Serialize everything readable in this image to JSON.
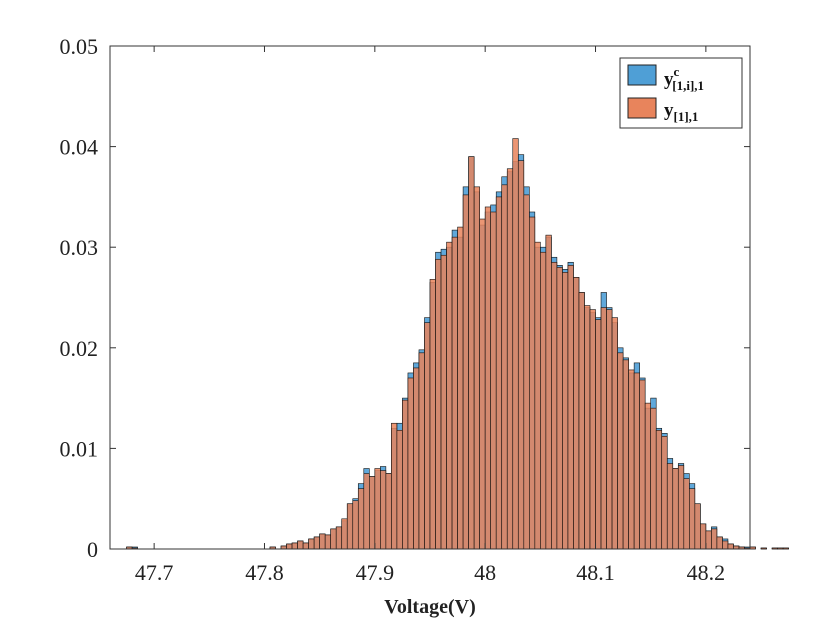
{
  "chart_data": {
    "type": "bar",
    "subtype": "overlaid-histogram",
    "title": "",
    "xlabel": "Voltage(V)",
    "ylabel": "",
    "xlim": [
      47.66,
      48.24
    ],
    "ylim": [
      0,
      0.05
    ],
    "x_ticks": [
      47.7,
      47.8,
      47.9,
      48,
      48.1,
      48.2
    ],
    "x_tick_labels": [
      "47.7",
      "47.8",
      "47.9",
      "48",
      "48.1",
      "48.2"
    ],
    "y_ticks": [
      0,
      0.01,
      0.02,
      0.03,
      0.04,
      0.05
    ],
    "y_tick_labels": [
      "0",
      "0.01",
      "0.02",
      "0.03",
      "0.04",
      "0.05"
    ],
    "grid": false,
    "legend_position": "top-right",
    "bin_width": 0.005,
    "bin_start": 47.675,
    "series": [
      {
        "name": "y^c_[1,i],1",
        "legend_main": "y",
        "legend_sup": "c",
        "legend_sub": "[1,i],1",
        "color": "#4f9fd6",
        "values": [
          0.0002,
          0.0002,
          0,
          0,
          0,
          0,
          0,
          0,
          0,
          0,
          0,
          0,
          0,
          0,
          0,
          0,
          0,
          0,
          0,
          0,
          0,
          0,
          0,
          0,
          0,
          0,
          0.0002,
          0,
          0.0003,
          0.0005,
          0.0006,
          0.0008,
          0.0006,
          0.001,
          0.0012,
          0.0015,
          0.0014,
          0.002,
          0.0022,
          0.0028,
          0.0045,
          0.005,
          0.0065,
          0.008,
          0.0072,
          0.0078,
          0.0082,
          0.0075,
          0.012,
          0.0125,
          0.015,
          0.0175,
          0.0185,
          0.0198,
          0.023,
          0.0265,
          0.0295,
          0.0298,
          0.03,
          0.0317,
          0.031,
          0.036,
          0.039,
          0.0355,
          0.0322,
          0.0335,
          0.0342,
          0.0355,
          0.037,
          0.0375,
          0.0385,
          0.0392,
          0.036,
          0.0335,
          0.03,
          0.03,
          0.031,
          0.029,
          0.0282,
          0.0278,
          0.0285,
          0.027,
          0.0255,
          0.024,
          0.0235,
          0.023,
          0.0255,
          0.024,
          0.0225,
          0.02,
          0.019,
          0.0175,
          0.0185,
          0.017,
          0.014,
          0.015,
          0.012,
          0.0115,
          0.009,
          0.008,
          0.0085,
          0.0075,
          0.0065,
          0.0045,
          0.0025,
          0.0018,
          0.0022,
          0.0012,
          0.001,
          0.0005,
          0.0003,
          0.0002,
          0.0002,
          0.0002,
          0,
          0.0001,
          0,
          0.0001,
          0.0001,
          0.0001
        ]
      },
      {
        "name": "y_[1],1",
        "legend_main": "y",
        "legend_sup": "",
        "legend_sub": "[1],1",
        "color": "#e8845c",
        "values": [
          0.0002,
          0.0001,
          0,
          0,
          0,
          0,
          0,
          0,
          0,
          0,
          0,
          0,
          0,
          0,
          0,
          0,
          0,
          0,
          0,
          0,
          0,
          0,
          0,
          0,
          0,
          0,
          0.0002,
          0,
          0.0003,
          0.0005,
          0.0006,
          0.0008,
          0.0006,
          0.001,
          0.0012,
          0.0015,
          0.0014,
          0.002,
          0.0022,
          0.003,
          0.0045,
          0.0048,
          0.006,
          0.0075,
          0.0072,
          0.008,
          0.0078,
          0.0075,
          0.0125,
          0.0118,
          0.0148,
          0.017,
          0.018,
          0.0195,
          0.0225,
          0.0268,
          0.0288,
          0.0292,
          0.0305,
          0.031,
          0.032,
          0.0352,
          0.039,
          0.036,
          0.0328,
          0.034,
          0.0335,
          0.035,
          0.0362,
          0.0378,
          0.0408,
          0.0386,
          0.0352,
          0.033,
          0.0305,
          0.0295,
          0.0312,
          0.0285,
          0.028,
          0.0275,
          0.0282,
          0.027,
          0.0255,
          0.0242,
          0.0238,
          0.0228,
          0.024,
          0.0238,
          0.023,
          0.0195,
          0.0188,
          0.0178,
          0.0175,
          0.0168,
          0.0145,
          0.014,
          0.0118,
          0.0112,
          0.0085,
          0.008,
          0.0083,
          0.007,
          0.006,
          0.0045,
          0.0025,
          0.0018,
          0.002,
          0.0012,
          0.0008,
          0.0005,
          0.0003,
          0.0002,
          0.0001,
          0.0002,
          0,
          0.0001,
          0,
          0.0001,
          0.0001,
          0.0001
        ]
      }
    ]
  }
}
